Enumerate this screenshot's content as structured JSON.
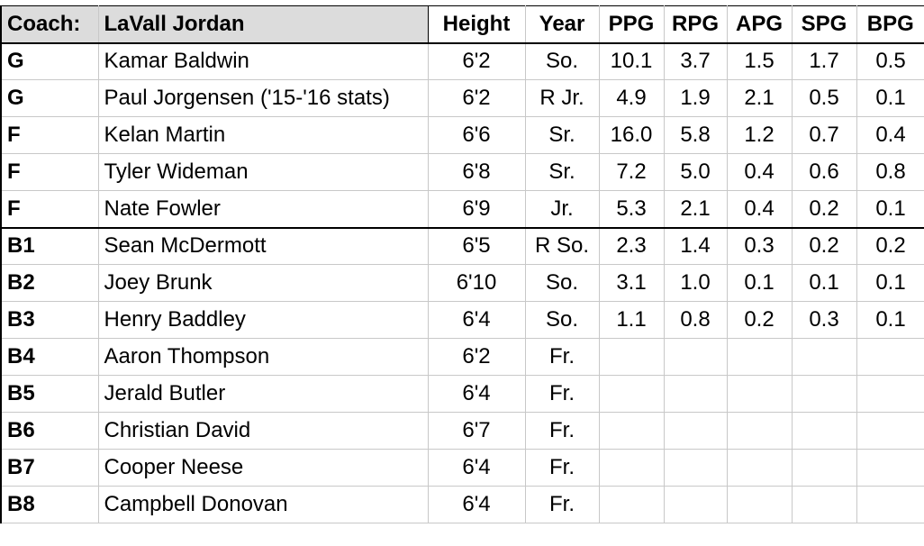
{
  "header": {
    "coach_label": "Coach:",
    "coach_name": "LaVall Jordan",
    "columns": [
      "Height",
      "Year",
      "PPG",
      "RPG",
      "APG",
      "SPG",
      "BPG"
    ]
  },
  "rows": [
    {
      "pos": "G",
      "name": "Kamar Baldwin",
      "height": "6'2",
      "year": "So.",
      "ppg": "10.1",
      "rpg": "3.7",
      "apg": "1.5",
      "spg": "1.7",
      "bpg": "0.5"
    },
    {
      "pos": "G",
      "name": "Paul Jorgensen ('15-'16 stats)",
      "height": "6'2",
      "year": "R Jr.",
      "ppg": "4.9",
      "rpg": "1.9",
      "apg": "2.1",
      "spg": "0.5",
      "bpg": "0.1"
    },
    {
      "pos": "F",
      "name": "Kelan Martin",
      "height": "6'6",
      "year": "Sr.",
      "ppg": "16.0",
      "rpg": "5.8",
      "apg": "1.2",
      "spg": "0.7",
      "bpg": "0.4"
    },
    {
      "pos": "F",
      "name": "Tyler Wideman",
      "height": "6'8",
      "year": "Sr.",
      "ppg": "7.2",
      "rpg": "5.0",
      "apg": "0.4",
      "spg": "0.6",
      "bpg": "0.8"
    },
    {
      "pos": "F",
      "name": "Nate Fowler",
      "height": "6'9",
      "year": "Jr.",
      "ppg": "5.3",
      "rpg": "2.1",
      "apg": "0.4",
      "spg": "0.2",
      "bpg": "0.1"
    },
    {
      "pos": "B1",
      "name": "Sean McDermott",
      "height": "6'5",
      "year": "R So.",
      "ppg": "2.3",
      "rpg": "1.4",
      "apg": "0.3",
      "spg": "0.2",
      "bpg": "0.2"
    },
    {
      "pos": "B2",
      "name": "Joey Brunk",
      "height": "6'10",
      "year": "So.",
      "ppg": "3.1",
      "rpg": "1.0",
      "apg": "0.1",
      "spg": "0.1",
      "bpg": "0.1"
    },
    {
      "pos": "B3",
      "name": "Henry Baddley",
      "height": "6'4",
      "year": "So.",
      "ppg": "1.1",
      "rpg": "0.8",
      "apg": "0.2",
      "spg": "0.3",
      "bpg": "0.1"
    },
    {
      "pos": "B4",
      "name": "Aaron Thompson",
      "height": "6'2",
      "year": "Fr.",
      "ppg": "",
      "rpg": "",
      "apg": "",
      "spg": "",
      "bpg": ""
    },
    {
      "pos": "B5",
      "name": "Jerald Butler",
      "height": "6'4",
      "year": "Fr.",
      "ppg": "",
      "rpg": "",
      "apg": "",
      "spg": "",
      "bpg": ""
    },
    {
      "pos": "B6",
      "name": "Christian David",
      "height": "6'7",
      "year": "Fr.",
      "ppg": "",
      "rpg": "",
      "apg": "",
      "spg": "",
      "bpg": ""
    },
    {
      "pos": "B7",
      "name": "Cooper Neese",
      "height": "6'4",
      "year": "Fr.",
      "ppg": "",
      "rpg": "",
      "apg": "",
      "spg": "",
      "bpg": ""
    },
    {
      "pos": "B8",
      "name": "Campbell Donovan",
      "height": "6'4",
      "year": "Fr.",
      "ppg": "",
      "rpg": "",
      "apg": "",
      "spg": "",
      "bpg": ""
    }
  ]
}
